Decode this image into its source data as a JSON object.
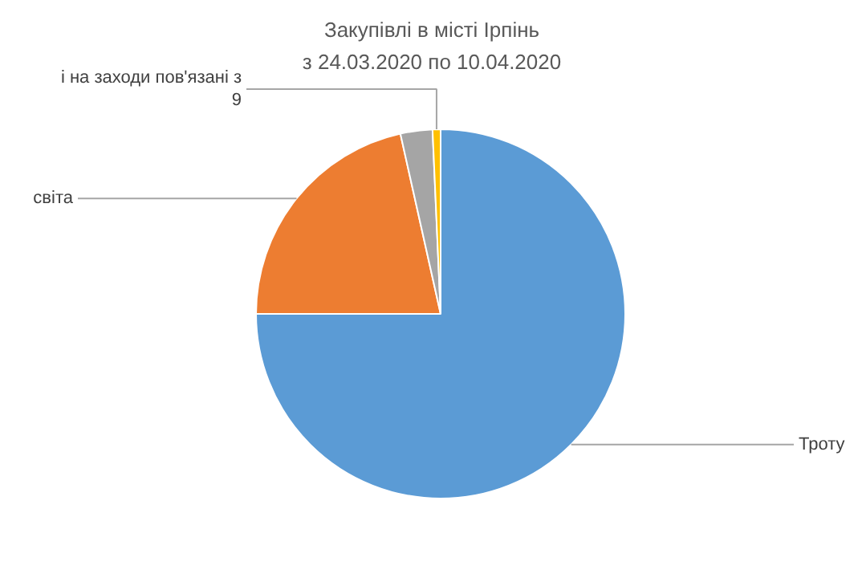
{
  "chart_data": {
    "type": "pie",
    "title": "Закупівлі в місті Ірпінь",
    "subtitle": "з 24.03.2020 по 10.04.2020",
    "categories": [
      "Троту",
      "світа",
      null,
      "і на заходи пов'язані з\n9"
    ],
    "values": [
      75,
      21.5,
      2.8,
      0.7
    ],
    "colors": [
      "#5b9bd5",
      "#ed7d31",
      "#a5a5a5",
      "#ffc000"
    ]
  }
}
